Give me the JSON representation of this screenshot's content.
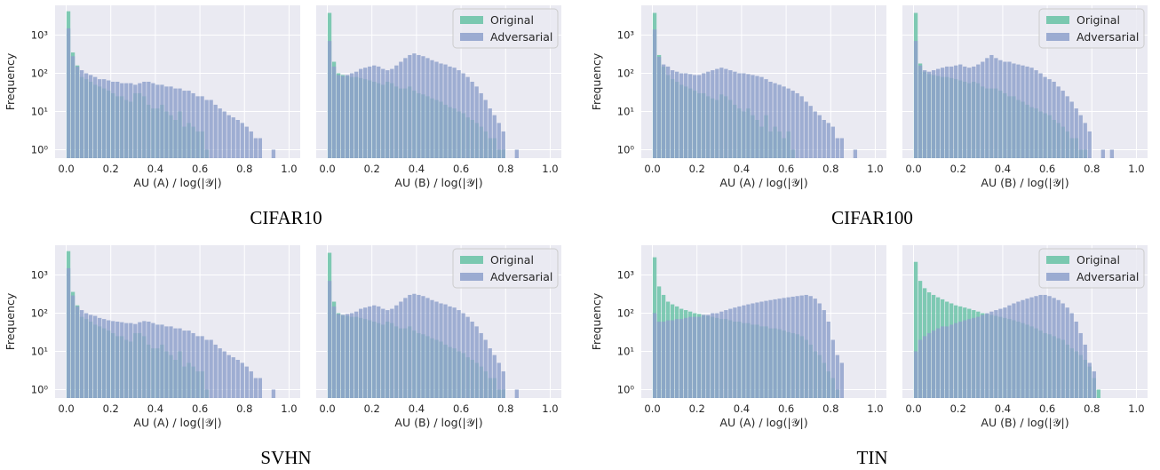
{
  "figure": {
    "captions": [
      "CIFAR10",
      "CIFAR100",
      "SVHN",
      "TIN"
    ],
    "legend": [
      "Original",
      "Adversarial"
    ],
    "colors": {
      "original": "#66c2a5",
      "adversarial": "#8da0cb",
      "panel_bg": "#eaeaf2",
      "grid": "#ffffff"
    }
  },
  "chart_data": [
    {
      "type": "bar",
      "dataset": "CIFAR10",
      "xlabel": "AU (A) / log(|𝒴|)",
      "ylabel": "Frequency",
      "yscale": "log",
      "xlim": [
        -0.05,
        1.05
      ],
      "ylim": [
        0.6,
        6000
      ],
      "xticks": [
        "0.0",
        "0.2",
        "0.4",
        "0.6",
        "0.8",
        "1.0"
      ],
      "yticks": [
        "10⁰",
        "10¹",
        "10²",
        "10³"
      ],
      "legend": false,
      "grid": true,
      "bin_width": 0.02,
      "series": [
        {
          "name": "Original",
          "values": [
            4200,
            350,
            160,
            80,
            70,
            60,
            50,
            45,
            40,
            35,
            30,
            25,
            25,
            20,
            18,
            30,
            30,
            25,
            15,
            12,
            12,
            15,
            10,
            8,
            6,
            10,
            4,
            5,
            4,
            3,
            3,
            1,
            0,
            0,
            0,
            0,
            0,
            0,
            0,
            0,
            0,
            0,
            0,
            0,
            0,
            0,
            0,
            0,
            0,
            0
          ]
        },
        {
          "name": "Adversarial",
          "values": [
            1500,
            280,
            150,
            120,
            100,
            90,
            80,
            70,
            70,
            65,
            60,
            60,
            55,
            55,
            55,
            50,
            55,
            60,
            60,
            55,
            50,
            50,
            45,
            45,
            40,
            40,
            35,
            35,
            30,
            25,
            25,
            20,
            20,
            15,
            12,
            10,
            8,
            7,
            6,
            5,
            4,
            3,
            2,
            2,
            0,
            0,
            1,
            0,
            0,
            0
          ]
        }
      ]
    },
    {
      "type": "bar",
      "dataset": "CIFAR10",
      "xlabel": "AU (B) / log(|𝒴|)",
      "ylabel": "",
      "yscale": "log",
      "xlim": [
        -0.05,
        1.05
      ],
      "ylim": [
        0.6,
        6000
      ],
      "xticks": [
        "0.0",
        "0.2",
        "0.4",
        "0.6",
        "0.8",
        "1.0"
      ],
      "yticks": [],
      "legend": true,
      "legend_pos": "top-right",
      "grid": true,
      "bin_width": 0.02,
      "series": [
        {
          "name": "Original",
          "values": [
            3800,
            200,
            100,
            90,
            85,
            80,
            80,
            75,
            70,
            65,
            60,
            55,
            50,
            60,
            55,
            45,
            40,
            40,
            45,
            35,
            30,
            28,
            25,
            22,
            20,
            18,
            15,
            13,
            12,
            10,
            9,
            7,
            6,
            5,
            4,
            3,
            2,
            2,
            1,
            1,
            0,
            0,
            0,
            0,
            0,
            0,
            0,
            0,
            0,
            0
          ]
        },
        {
          "name": "Adversarial",
          "values": [
            700,
            150,
            90,
            85,
            90,
            100,
            110,
            130,
            140,
            150,
            160,
            150,
            130,
            120,
            130,
            160,
            200,
            250,
            300,
            330,
            300,
            280,
            250,
            220,
            200,
            180,
            170,
            150,
            140,
            120,
            100,
            80,
            60,
            45,
            30,
            20,
            12,
            8,
            5,
            3,
            0,
            0,
            1,
            0,
            0,
            0,
            0,
            0,
            0,
            0
          ]
        }
      ]
    },
    {
      "type": "bar",
      "dataset": "CIFAR100",
      "xlabel": "AU (A) / log(|𝒴|)",
      "ylabel": "Frequency",
      "yscale": "log",
      "xlim": [
        -0.05,
        1.05
      ],
      "ylim": [
        0.6,
        6000
      ],
      "xticks": [
        "0.0",
        "0.2",
        "0.4",
        "0.6",
        "0.8",
        "1.0"
      ],
      "yticks": [
        "10⁰",
        "10¹",
        "10²",
        "10³"
      ],
      "legend": false,
      "grid": true,
      "bin_width": 0.02,
      "series": [
        {
          "name": "Original",
          "values": [
            3800,
            300,
            150,
            90,
            70,
            60,
            50,
            45,
            40,
            35,
            30,
            30,
            25,
            22,
            20,
            28,
            25,
            20,
            15,
            12,
            10,
            12,
            8,
            6,
            4,
            8,
            3,
            4,
            3,
            2,
            3,
            1,
            0,
            0,
            0,
            0,
            0,
            0,
            0,
            0,
            0,
            0,
            0,
            0,
            0,
            0,
            0,
            0,
            0,
            0
          ]
        },
        {
          "name": "Adversarial",
          "values": [
            1400,
            270,
            170,
            150,
            120,
            110,
            100,
            100,
            95,
            90,
            90,
            100,
            110,
            120,
            130,
            140,
            130,
            120,
            110,
            100,
            100,
            95,
            90,
            85,
            80,
            70,
            60,
            55,
            50,
            45,
            40,
            35,
            30,
            25,
            18,
            14,
            10,
            8,
            6,
            5,
            4,
            2,
            2,
            0,
            0,
            1,
            0,
            0,
            0,
            0
          ]
        }
      ]
    },
    {
      "type": "bar",
      "dataset": "CIFAR100",
      "xlabel": "AU (B) / log(|𝒴|)",
      "ylabel": "",
      "yscale": "log",
      "xlim": [
        -0.05,
        1.05
      ],
      "ylim": [
        0.6,
        6000
      ],
      "xticks": [
        "0.0",
        "0.2",
        "0.4",
        "0.6",
        "0.8",
        "1.0"
      ],
      "yticks": [],
      "legend": true,
      "legend_pos": "top-right",
      "grid": true,
      "bin_width": 0.02,
      "series": [
        {
          "name": "Original",
          "values": [
            3800,
            180,
            110,
            95,
            90,
            85,
            80,
            80,
            75,
            70,
            65,
            60,
            55,
            60,
            55,
            45,
            40,
            40,
            40,
            35,
            30,
            25,
            25,
            20,
            18,
            15,
            13,
            12,
            10,
            9,
            8,
            6,
            5,
            4,
            3,
            2,
            2,
            1,
            1,
            0,
            0,
            0,
            0,
            0,
            0,
            0,
            0,
            0,
            0,
            0
          ]
        },
        {
          "name": "Adversarial",
          "values": [
            700,
            160,
            120,
            110,
            120,
            130,
            140,
            150,
            150,
            160,
            170,
            150,
            140,
            150,
            170,
            200,
            250,
            300,
            250,
            220,
            200,
            200,
            180,
            170,
            160,
            150,
            140,
            120,
            100,
            80,
            70,
            60,
            45,
            35,
            25,
            18,
            12,
            8,
            5,
            3,
            0,
            0,
            1,
            0,
            1,
            0,
            0,
            0,
            0,
            0
          ]
        }
      ]
    },
    {
      "type": "bar",
      "dataset": "SVHN",
      "xlabel": "AU (A) / log(|𝒴|)",
      "ylabel": "Frequency",
      "yscale": "log",
      "xlim": [
        -0.05,
        1.05
      ],
      "ylim": [
        0.6,
        6000
      ],
      "xticks": [
        "0.0",
        "0.2",
        "0.4",
        "0.6",
        "0.8",
        "1.0"
      ],
      "yticks": [
        "10⁰",
        "10¹",
        "10²",
        "10³"
      ],
      "legend": false,
      "grid": true,
      "bin_width": 0.02,
      "series": [
        {
          "name": "Original",
          "values": [
            4200,
            360,
            160,
            80,
            70,
            60,
            50,
            45,
            40,
            35,
            30,
            25,
            25,
            20,
            18,
            30,
            30,
            25,
            15,
            12,
            12,
            15,
            10,
            8,
            6,
            10,
            4,
            5,
            4,
            3,
            3,
            1,
            0,
            0,
            0,
            0,
            0,
            0,
            0,
            0,
            0,
            0,
            0,
            0,
            0,
            0,
            0,
            0,
            0,
            0
          ]
        },
        {
          "name": "Adversarial",
          "values": [
            1500,
            290,
            150,
            120,
            100,
            90,
            85,
            75,
            70,
            65,
            62,
            60,
            58,
            55,
            55,
            52,
            58,
            62,
            60,
            55,
            50,
            50,
            45,
            45,
            40,
            40,
            35,
            35,
            30,
            25,
            25,
            20,
            20,
            15,
            12,
            10,
            8,
            7,
            6,
            5,
            4,
            3,
            2,
            2,
            0,
            0,
            1,
            0,
            0,
            0
          ]
        }
      ]
    },
    {
      "type": "bar",
      "dataset": "SVHN",
      "xlabel": "AU (B) / log(|𝒴|)",
      "ylabel": "",
      "yscale": "log",
      "xlim": [
        -0.05,
        1.05
      ],
      "ylim": [
        0.6,
        6000
      ],
      "xticks": [
        "0.0",
        "0.2",
        "0.4",
        "0.6",
        "0.8",
        "1.0"
      ],
      "yticks": [],
      "legend": true,
      "legend_pos": "top-right",
      "grid": true,
      "bin_width": 0.02,
      "series": [
        {
          "name": "Original",
          "values": [
            3800,
            200,
            100,
            90,
            85,
            80,
            80,
            75,
            70,
            65,
            60,
            55,
            50,
            60,
            55,
            45,
            40,
            40,
            45,
            35,
            30,
            28,
            25,
            22,
            20,
            18,
            15,
            13,
            12,
            10,
            9,
            7,
            6,
            5,
            4,
            3,
            2,
            2,
            1,
            1,
            0,
            0,
            0,
            0,
            0,
            0,
            0,
            0,
            0,
            0
          ]
        },
        {
          "name": "Adversarial",
          "values": [
            700,
            150,
            95,
            90,
            95,
            100,
            110,
            130,
            140,
            150,
            160,
            150,
            130,
            120,
            130,
            160,
            200,
            250,
            300,
            320,
            300,
            280,
            250,
            220,
            200,
            180,
            170,
            150,
            140,
            120,
            100,
            80,
            60,
            45,
            30,
            20,
            12,
            8,
            5,
            3,
            0,
            0,
            1,
            0,
            0,
            0,
            0,
            0,
            0,
            0
          ]
        }
      ]
    },
    {
      "type": "bar",
      "dataset": "TIN",
      "xlabel": "AU (A) / log(|𝒴|)",
      "ylabel": "Frequency",
      "yscale": "log",
      "xlim": [
        -0.05,
        1.05
      ],
      "ylim": [
        0.6,
        6000
      ],
      "xticks": [
        "0.0",
        "0.2",
        "0.4",
        "0.6",
        "0.8",
        "1.0"
      ],
      "yticks": [
        "10⁰",
        "10¹",
        "10²",
        "10³"
      ],
      "legend": false,
      "grid": true,
      "bin_width": 0.02,
      "series": [
        {
          "name": "Original",
          "values": [
            2900,
            500,
            300,
            200,
            170,
            150,
            130,
            120,
            110,
            100,
            95,
            90,
            85,
            80,
            75,
            70,
            70,
            65,
            60,
            60,
            55,
            55,
            50,
            50,
            45,
            45,
            40,
            40,
            38,
            35,
            32,
            30,
            28,
            25,
            20,
            15,
            10,
            8,
            5,
            3,
            2,
            1,
            0,
            0,
            0,
            0,
            0,
            0,
            0,
            0
          ]
        },
        {
          "name": "Adversarial",
          "values": [
            100,
            60,
            60,
            65,
            65,
            70,
            70,
            75,
            80,
            80,
            80,
            90,
            90,
            100,
            100,
            110,
            120,
            130,
            140,
            150,
            160,
            170,
            180,
            190,
            200,
            210,
            220,
            230,
            240,
            250,
            260,
            270,
            280,
            290,
            300,
            280,
            240,
            180,
            120,
            60,
            20,
            8,
            5,
            0,
            0,
            0,
            0,
            0,
            0,
            0
          ]
        }
      ]
    },
    {
      "type": "bar",
      "dataset": "TIN",
      "xlabel": "AU (B) / log(|𝒴|)",
      "ylabel": "",
      "yscale": "log",
      "xlim": [
        -0.05,
        1.05
      ],
      "ylim": [
        0.6,
        6000
      ],
      "xticks": [
        "0.0",
        "0.2",
        "0.4",
        "0.6",
        "0.8",
        "1.0"
      ],
      "yticks": [],
      "legend": true,
      "legend_pos": "top-right",
      "grid": true,
      "bin_width": 0.02,
      "series": [
        {
          "name": "Original",
          "values": [
            2200,
            700,
            450,
            350,
            300,
            260,
            230,
            200,
            180,
            160,
            150,
            140,
            130,
            120,
            110,
            100,
            95,
            90,
            85,
            80,
            75,
            70,
            65,
            60,
            55,
            50,
            45,
            40,
            35,
            30,
            28,
            25,
            22,
            20,
            15,
            12,
            10,
            8,
            6,
            4,
            2,
            1,
            0,
            0,
            0,
            0,
            0,
            0,
            0,
            0
          ]
        },
        {
          "name": "Adversarial",
          "values": [
            10,
            20,
            25,
            30,
            35,
            40,
            45,
            45,
            50,
            55,
            60,
            65,
            70,
            75,
            80,
            90,
            100,
            110,
            120,
            130,
            140,
            160,
            180,
            200,
            220,
            240,
            260,
            280,
            300,
            300,
            280,
            250,
            220,
            180,
            140,
            100,
            60,
            30,
            15,
            5,
            3,
            0,
            0,
            0,
            0,
            0,
            0,
            0,
            0,
            0
          ]
        }
      ]
    }
  ]
}
